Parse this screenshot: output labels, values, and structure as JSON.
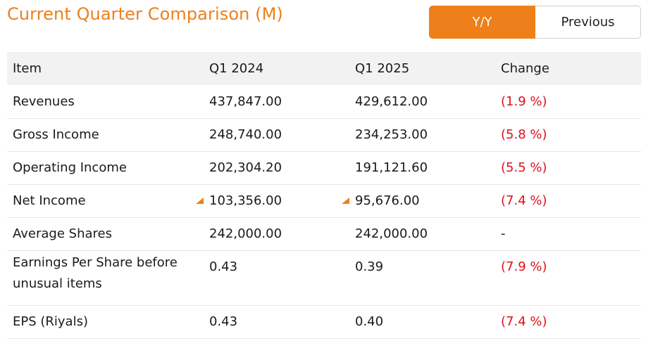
{
  "title": "Current Quarter Comparison (M)",
  "toggle": {
    "yy_label": "Y/Y",
    "previous_label": "Previous",
    "selected": "Y/Y"
  },
  "colors": {
    "accent": "#ef7f1a",
    "negative": "#e0101a"
  },
  "table": {
    "headers": {
      "item": "Item",
      "q1": "Q1 2024",
      "q2": "Q1 2025",
      "change": "Change"
    },
    "rows": [
      {
        "item": "Revenues",
        "q1": "437,847.00",
        "q2": "429,612.00",
        "change": "(1.9 %)"
      },
      {
        "item": "Gross Income",
        "q1": "248,740.00",
        "q2": "234,253.00",
        "change": "(5.8 %)"
      },
      {
        "item": "Operating Income",
        "q1": "202,304.20",
        "q2": "191,121.60",
        "change": "(5.5 %)"
      },
      {
        "item": "Net Income",
        "q1": "103,356.00",
        "q2": "95,676.00",
        "change": "(7.4 %)"
      },
      {
        "item": "Average Shares",
        "q1": "242,000.00",
        "q2": "242,000.00",
        "change": "-"
      },
      {
        "item": "Earnings Per Share before unusual items",
        "q1": "0.43",
        "q2": "0.39",
        "change": "(7.9 %)"
      },
      {
        "item": "EPS (Riyals)",
        "q1": "0.43",
        "q2": "0.40",
        "change": "(7.4 %)"
      }
    ],
    "flag_icon": "orange-triangle-flag-icon"
  }
}
